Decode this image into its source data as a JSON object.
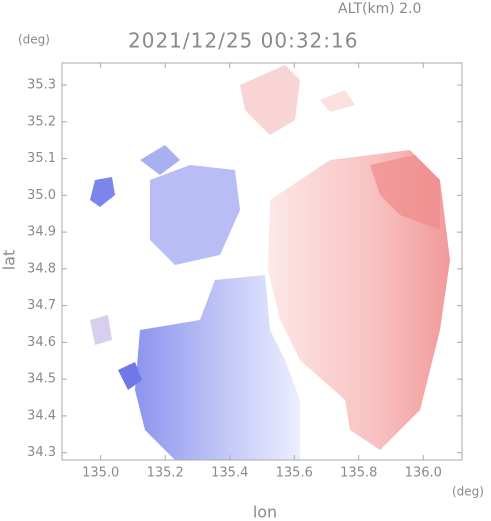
{
  "chart_data": {
    "type": "image",
    "title": "2021/12/25 00:32:16",
    "altitude_label": "ALT(km) 2.0",
    "y_unit": "(deg)",
    "x_unit": "(deg)",
    "xlabel": "lon",
    "ylabel": "lat",
    "xlim": [
      134.88,
      136.12
    ],
    "ylim": [
      34.28,
      35.36
    ],
    "xticks": [
      {
        "value": 135,
        "label": "135.0"
      },
      135.2,
      135.4,
      135.6,
      135.8,
      {
        "value": 136,
        "label": "136.0"
      }
    ],
    "yticks": [
      34.3,
      34.4,
      34.5,
      34.6,
      34.7,
      34.8,
      34.9,
      {
        "value": 35,
        "label": "35.0"
      },
      35.1,
      35.2,
      35.3
    ]
  }
}
